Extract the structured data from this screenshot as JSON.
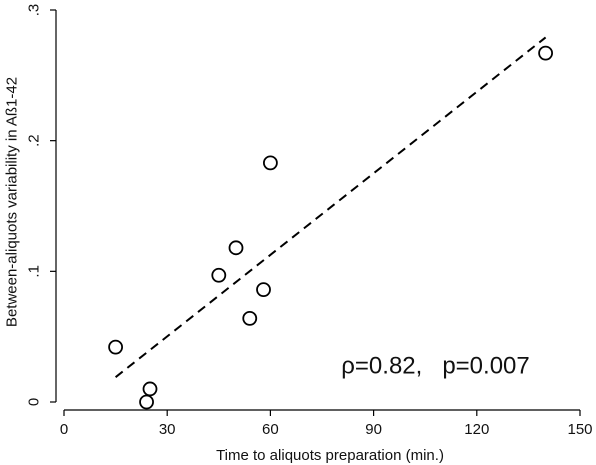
{
  "chart_data": {
    "type": "scatter",
    "title": "",
    "xlabel": "Time to aliquots preparation (min.)",
    "ylabel": "Between-aliquots variability in Aß1-42",
    "xlim": [
      0,
      150
    ],
    "ylim": [
      0,
      0.3
    ],
    "x_ticks": [
      0,
      30,
      60,
      90,
      120,
      150
    ],
    "x_tick_labels": [
      "0",
      "30",
      "60",
      "90",
      "120",
      "150"
    ],
    "y_ticks": [
      0,
      0.1,
      0.2,
      0.3
    ],
    "y_tick_labels": [
      "0",
      ".1",
      ".2",
      ".3"
    ],
    "grid": false,
    "points": [
      {
        "x": 15,
        "y": 0.042
      },
      {
        "x": 24,
        "y": 0.0
      },
      {
        "x": 25,
        "y": 0.01
      },
      {
        "x": 45,
        "y": 0.097
      },
      {
        "x": 50,
        "y": 0.118
      },
      {
        "x": 54,
        "y": 0.064
      },
      {
        "x": 58,
        "y": 0.086
      },
      {
        "x": 60,
        "y": 0.183
      },
      {
        "x": 140,
        "y": 0.267
      }
    ],
    "fit_line": {
      "x": [
        15,
        140
      ],
      "y": [
        0.019,
        0.279
      ],
      "style": "dashed"
    },
    "annotation": {
      "text": "ρ=0.82,   p=0.007",
      "x": 108,
      "y": 0.022
    }
  }
}
